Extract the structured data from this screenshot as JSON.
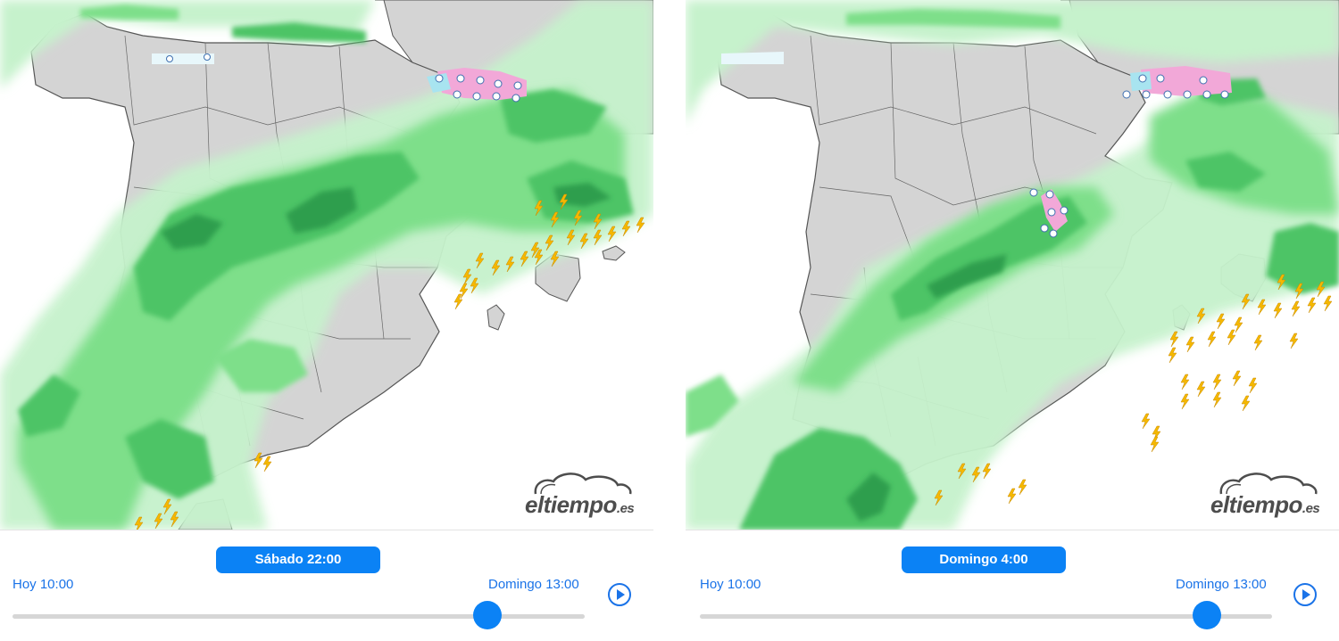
{
  "panels": [
    {
      "current_time": "Sábado 22:00",
      "range_start": "Hoy 10:00",
      "range_end": "Domingo 13:00",
      "slider_position": 0.83,
      "logo_main": "eltiempo",
      "logo_tld": ".es"
    },
    {
      "current_time": "Domingo 4:00",
      "range_start": "Hoy 10:00",
      "range_end": "Domingo 13:00",
      "slider_position": 0.89,
      "logo_main": "eltiempo",
      "logo_tld": ".es"
    }
  ],
  "legend_colors": {
    "land": "#d4d4d4",
    "sea": "#ffffff",
    "rain_light": "#c6f2cc",
    "rain_moderate": "#7edf8a",
    "rain_heavy": "#4ec466",
    "rain_intense": "#2e9e4e",
    "snow": "#f2a8d8",
    "sleet": "#a8e4f0",
    "lightning": "#f5b800",
    "accent": "#0b82f5"
  },
  "icons": [
    "lightning-icon",
    "snow-icon",
    "rain-drop-icon",
    "play-icon",
    "slider-thumb-icon"
  ]
}
